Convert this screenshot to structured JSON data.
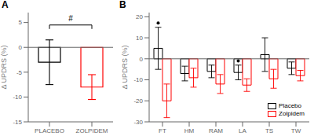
{
  "chart_data": [
    {
      "type": "bar",
      "title": "A",
      "categories": [
        "PLACEBO",
        "ZOLPIDEM"
      ],
      "values": [
        -3.0,
        -8.0
      ],
      "errors": [
        4.5,
        2.5
      ],
      "colors": [
        "black",
        "red"
      ],
      "ylabel": "Δ UPDRS (%)",
      "ylim": [
        -15,
        7
      ],
      "yticks": [
        -15,
        -10,
        -5,
        0,
        5
      ],
      "annotations": [
        {
          "text": "#",
          "y": 4.5,
          "from": "PLACEBO",
          "to": "ZOLPIDEM"
        }
      ]
    },
    {
      "type": "bar",
      "title": "B",
      "categories": [
        "FT",
        "HM",
        "RAM",
        "LA",
        "TS",
        "TW"
      ],
      "series": [
        {
          "name": "Placebo",
          "color": "black",
          "values": [
            5.0,
            -7.0,
            -6.0,
            -6.5,
            2.0,
            -4.5
          ],
          "errors": [
            10.0,
            3.5,
            3.0,
            3.5,
            8.0,
            3.0
          ]
        },
        {
          "name": "Zolpidem",
          "color": "red",
          "values": [
            -20.0,
            -9.0,
            -12.0,
            -12.5,
            -9.5,
            -8.0
          ],
          "errors": [
            8.0,
            4.5,
            4.5,
            3.0,
            4.5,
            2.5
          ]
        }
      ],
      "ylabel": "Δ UPDRS (%)",
      "ylim": [
        -30,
        22
      ],
      "yticks": [
        -30,
        -20,
        -10,
        0,
        10,
        20
      ],
      "significance_dots": [
        {
          "category": "FT",
          "series": "Placebo",
          "y": 17.0
        },
        {
          "category": "LA",
          "series": "Placebo",
          "y": -1.0
        }
      ],
      "legend": "lower right"
    }
  ]
}
